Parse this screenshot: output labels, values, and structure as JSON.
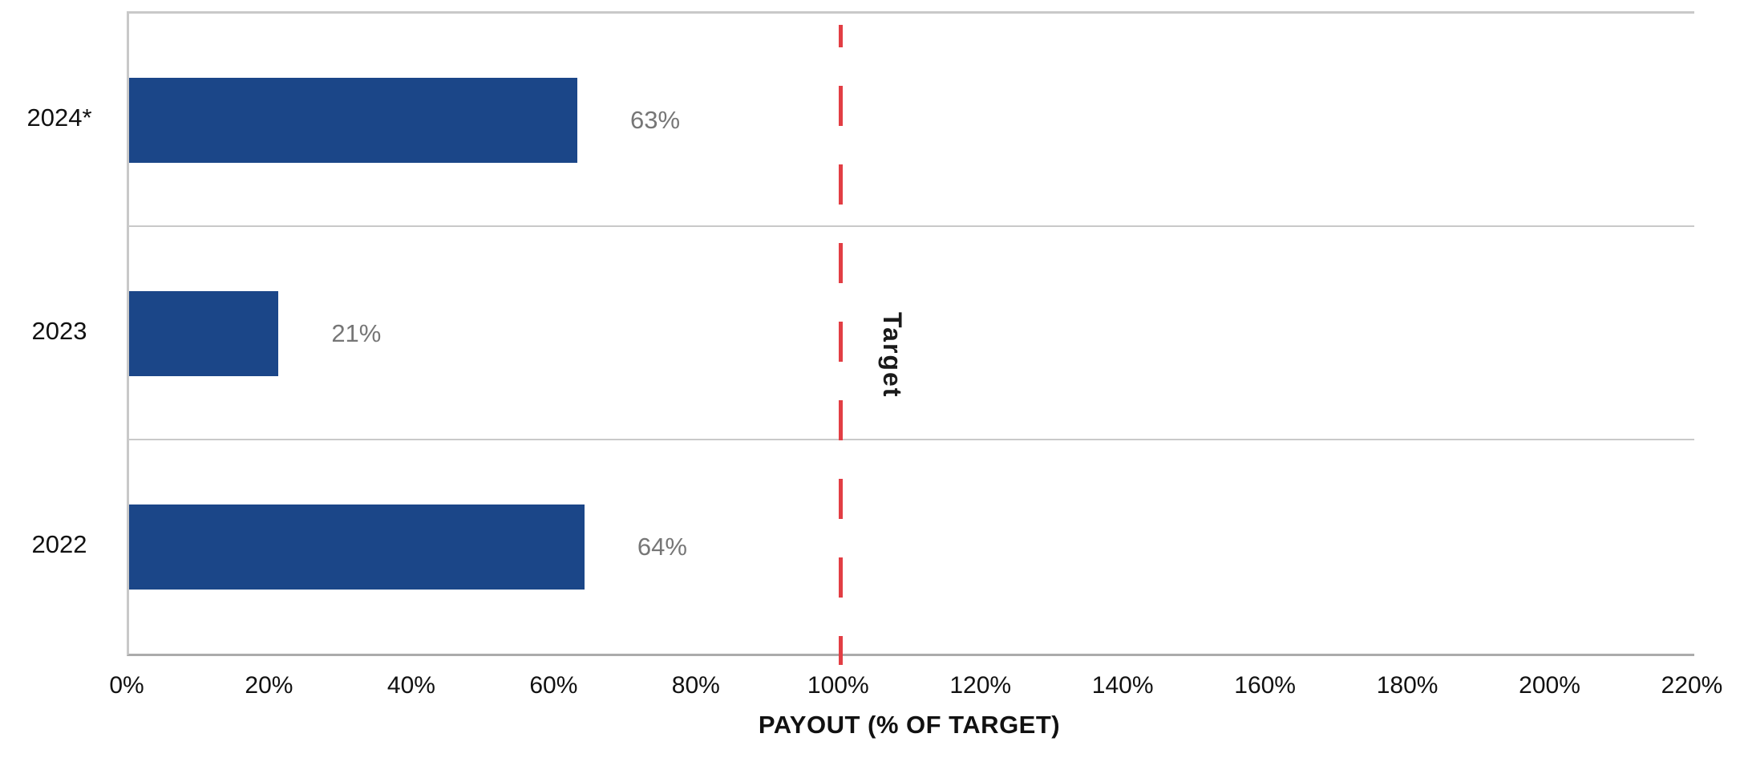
{
  "chart_data": {
    "type": "bar",
    "orientation": "horizontal",
    "categories": [
      "2024*",
      "2023",
      "2022"
    ],
    "values": [
      63,
      21,
      64
    ],
    "value_labels": [
      "63%",
      "21%",
      "64%"
    ],
    "xlabel": "PAYOUT (% OF TARGET)",
    "x_ticks": [
      "0%",
      "20%",
      "40%",
      "60%",
      "80%",
      "100%",
      "120%",
      "140%",
      "160%",
      "180%",
      "200%",
      "220%"
    ],
    "xlim": [
      0,
      220
    ],
    "x_tick_step": 20,
    "legend_position": "none",
    "grid": "horizontal category band separators",
    "reference_line": {
      "value": 100,
      "label": "Target",
      "style": "dashed"
    },
    "colors": {
      "bar": "#1b4688",
      "value_label": "#767676",
      "reference": "#e23e44",
      "grid_line": "#c9c9c9",
      "axis_line": "#ababab",
      "background": "#ffffff",
      "axis_text": "#111111"
    }
  }
}
